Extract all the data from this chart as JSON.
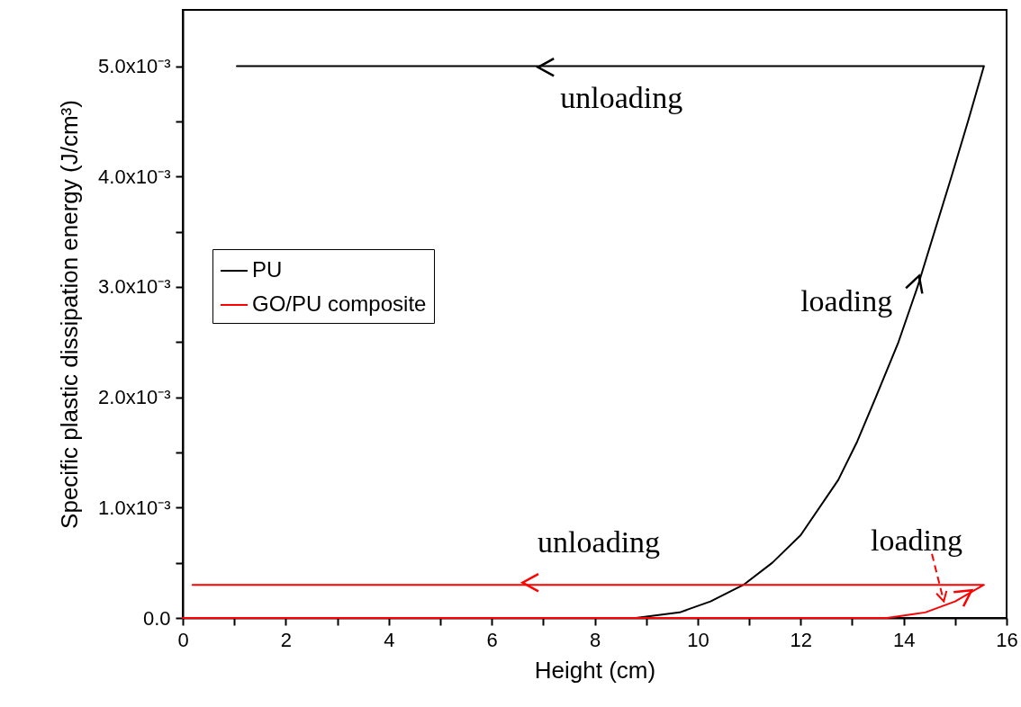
{
  "chart_data": {
    "type": "line",
    "xlabel": "Height (cm)",
    "ylabel": "Specific plastic dissipation energy (J/cm³)",
    "xlim": [
      0,
      16
    ],
    "ylim": [
      0,
      0.00551
    ],
    "xticks": [
      0,
      {
        "value": 1,
        "label": null
      },
      2,
      {
        "value": 3,
        "label": null
      },
      4,
      {
        "value": 5,
        "label": null
      },
      6,
      {
        "value": 7,
        "label": null
      },
      8,
      {
        "value": 9,
        "label": null
      },
      10,
      {
        "value": 11,
        "label": null
      },
      12,
      {
        "value": 13,
        "label": null
      },
      14,
      {
        "value": 15,
        "label": null
      },
      16
    ],
    "yticks": [
      {
        "value": 0,
        "label": "0.0"
      },
      {
        "value": 0.0005,
        "label": null
      },
      {
        "value": 0.001,
        "label": "1.0x10⁻³"
      },
      {
        "value": 0.0015,
        "label": null
      },
      {
        "value": 0.002,
        "label": "2.0x10⁻³"
      },
      {
        "value": 0.0025,
        "label": null
      },
      {
        "value": 0.003,
        "label": "3.0x10⁻³"
      },
      {
        "value": 0.0035,
        "label": null
      },
      {
        "value": 0.004,
        "label": "4.0x10⁻³"
      },
      {
        "value": 0.0045,
        "label": null
      },
      {
        "value": 0.005,
        "label": "5.0x10⁻³"
      }
    ],
    "series": [
      {
        "name": "PU",
        "color": "#000000",
        "x": [
          8.8,
          9.65,
          10.25,
          10.89,
          11.45,
          12.0,
          12.73,
          13.1,
          13.46,
          13.9,
          14.27,
          14.93,
          15.25,
          15.56,
          1.05
        ],
        "values": [
          0,
          5e-05,
          0.00015,
          0.0003,
          0.0005,
          0.00075,
          0.00125,
          0.0016,
          0.002,
          0.0025,
          0.003,
          0.004,
          0.0045,
          0.005,
          0.005
        ]
      },
      {
        "name": "GO/PU composite",
        "color": "#ff0000",
        "x": [
          0,
          13.68,
          14.42,
          15.0,
          15.56,
          0.19
        ],
        "values": [
          0,
          0,
          5e-05,
          0.00015,
          0.0003,
          0.0003
        ]
      }
    ],
    "annotations": [
      "unloading",
      "loading",
      "unloading",
      "loading"
    ],
    "legend": "left",
    "line_style": "solid",
    "marker": "none",
    "grid": false
  }
}
